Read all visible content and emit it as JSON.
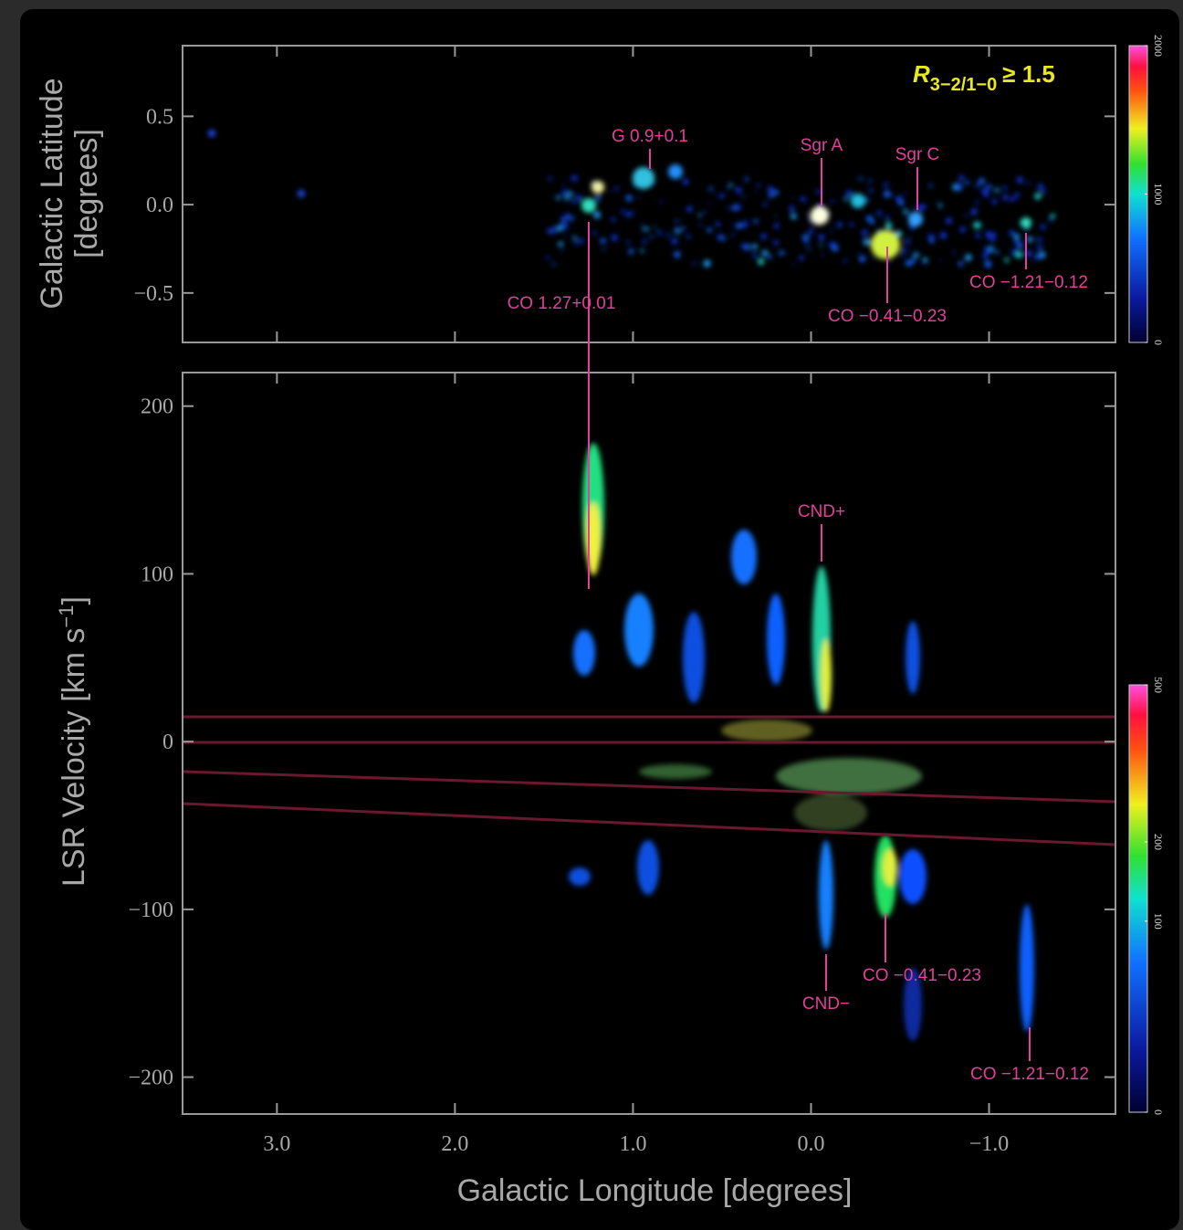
{
  "chart_data": [
    {
      "type": "image",
      "ylabel": [
        "Galactic Latitude",
        "[degrees]"
      ],
      "xlim": [
        3.53,
        -1.71
      ],
      "ylim": [
        -0.78,
        0.9
      ],
      "yticks": [
        {
          "value": 0.5,
          "label": "0.5"
        },
        {
          "value": 0,
          "label": "0.0"
        },
        {
          "value": -0.5,
          "label": "−0.5"
        }
      ],
      "threshold_label": {
        "symbol": "R",
        "subscript": "3−2/1−0",
        "relation": "≥ 1.5"
      },
      "annotations": [
        "G 0.9+0.1",
        "Sgr A",
        "Sgr C",
        "CO 1.27+0.01",
        "CO −0.41−0.23",
        "CO −1.21−0.12"
      ],
      "colorbar": {
        "clim": [
          0,
          2000
        ],
        "ticks": [
          0,
          1000,
          2000
        ]
      }
    },
    {
      "type": "image",
      "xlabel": "Galactic Longitude  [degrees]",
      "ylabel": {
        "text": "LSR Velocity  [km s",
        "sup": "−1",
        "end": "]"
      },
      "xlim": [
        3.53,
        -1.71
      ],
      "ylim": [
        -222,
        220
      ],
      "xticks": [
        {
          "value": 3,
          "label": "3.0"
        },
        {
          "value": 2,
          "label": "2.0"
        },
        {
          "value": 1,
          "label": "1.0"
        },
        {
          "value": 0,
          "label": "0.0"
        },
        {
          "value": -1,
          "label": "−1.0"
        }
      ],
      "yticks": [
        200,
        100,
        0,
        {
          "value": -100,
          "label": "−100"
        },
        {
          "value": -200,
          "label": "−200"
        }
      ],
      "annotations": [
        "CND+",
        "CND−",
        "CO −0.41−0.23",
        "CO −1.21−0.12"
      ],
      "colorbar": {
        "clim": [
          0,
          500
        ],
        "scale": "sqrt",
        "ticks": [
          0,
          100,
          200,
          500
        ]
      }
    }
  ]
}
